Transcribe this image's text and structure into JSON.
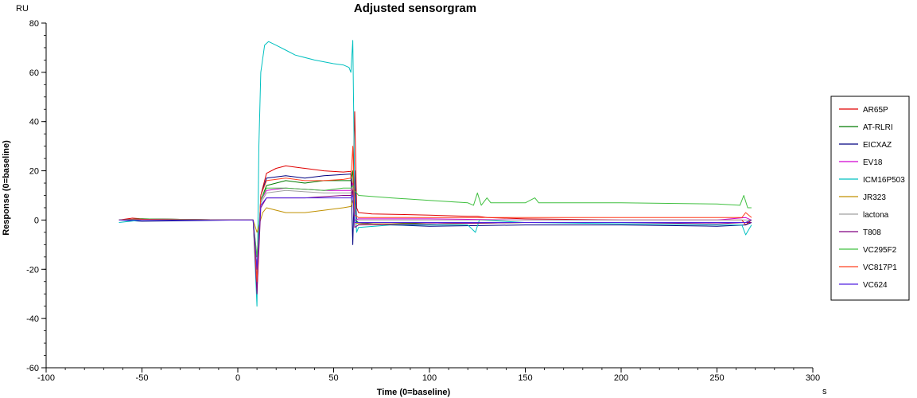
{
  "chart_data": {
    "type": "line",
    "title": "Adjusted sensorgram",
    "xlabel": "Time (0=baseline)",
    "xunit": "s",
    "ylabel": "Response (0=baseline)",
    "yunit": "RU",
    "xlim": [
      -100,
      300
    ],
    "ylim": [
      -60,
      80
    ],
    "xticks": [
      -100,
      -50,
      0,
      50,
      100,
      150,
      200,
      250,
      300
    ],
    "yticks": [
      -60,
      -40,
      -20,
      0,
      20,
      40,
      60,
      80
    ],
    "grid": false,
    "legend_position": "right",
    "series": [
      {
        "name": "AR65P",
        "color": "#e00000",
        "points": [
          [
            -62,
            0
          ],
          [
            -55,
            0.8
          ],
          [
            -40,
            0
          ],
          [
            0,
            0
          ],
          [
            8,
            0
          ],
          [
            10,
            -30
          ],
          [
            12,
            10
          ],
          [
            15,
            19
          ],
          [
            20,
            21
          ],
          [
            25,
            22
          ],
          [
            35,
            21
          ],
          [
            45,
            20
          ],
          [
            55,
            19.5
          ],
          [
            59,
            19.8
          ],
          [
            60,
            10
          ],
          [
            61,
            44
          ],
          [
            62,
            5
          ],
          [
            63,
            3
          ],
          [
            70,
            2.5
          ],
          [
            100,
            2
          ],
          [
            120,
            1.5
          ],
          [
            125,
            1.5
          ],
          [
            130,
            1
          ],
          [
            150,
            0.5
          ],
          [
            200,
            0
          ],
          [
            250,
            0
          ],
          [
            263,
            0
          ],
          [
            265,
            -2
          ],
          [
            268,
            0
          ]
        ]
      },
      {
        "name": "AT-RLRI",
        "color": "#007a00",
        "points": [
          [
            -62,
            0
          ],
          [
            -50,
            0.5
          ],
          [
            0,
            0
          ],
          [
            8,
            0
          ],
          [
            10,
            -20
          ],
          [
            12,
            8
          ],
          [
            15,
            14
          ],
          [
            25,
            16
          ],
          [
            35,
            15
          ],
          [
            45,
            16
          ],
          [
            55,
            16
          ],
          [
            59,
            16
          ],
          [
            60,
            20
          ],
          [
            61,
            0
          ],
          [
            63,
            -1
          ],
          [
            80,
            -1
          ],
          [
            100,
            -1.5
          ],
          [
            150,
            -1
          ],
          [
            200,
            -1
          ],
          [
            250,
            -1
          ],
          [
            265,
            -1
          ],
          [
            268,
            0
          ]
        ]
      },
      {
        "name": "EICXAZ",
        "color": "#000080",
        "points": [
          [
            -62,
            0
          ],
          [
            -50,
            -0.5
          ],
          [
            0,
            0
          ],
          [
            8,
            0
          ],
          [
            10,
            -25
          ],
          [
            12,
            10
          ],
          [
            15,
            17
          ],
          [
            25,
            18
          ],
          [
            35,
            17
          ],
          [
            45,
            18
          ],
          [
            55,
            18.5
          ],
          [
            59,
            18.7
          ],
          [
            60,
            -10
          ],
          [
            61,
            20
          ],
          [
            62,
            -1
          ],
          [
            80,
            -2
          ],
          [
            100,
            -2.5
          ],
          [
            150,
            -2
          ],
          [
            200,
            -2
          ],
          [
            250,
            -2.5
          ],
          [
            265,
            -2
          ],
          [
            268,
            -1
          ]
        ]
      },
      {
        "name": "EV18",
        "color": "#d000d0",
        "points": [
          [
            -62,
            0
          ],
          [
            -50,
            0.3
          ],
          [
            0,
            0
          ],
          [
            8,
            0
          ],
          [
            10,
            -20
          ],
          [
            12,
            8
          ],
          [
            15,
            12
          ],
          [
            25,
            13
          ],
          [
            35,
            12.5
          ],
          [
            45,
            12
          ],
          [
            55,
            12
          ],
          [
            59,
            12
          ],
          [
            60,
            15
          ],
          [
            61,
            0
          ],
          [
            63,
            0.5
          ],
          [
            100,
            0.5
          ],
          [
            150,
            0
          ],
          [
            200,
            0
          ],
          [
            250,
            0
          ],
          [
            265,
            1
          ],
          [
            268,
            0
          ]
        ]
      },
      {
        "name": "ICM16P503",
        "color": "#00c0c0",
        "points": [
          [
            -62,
            -1
          ],
          [
            -50,
            0
          ],
          [
            0,
            0
          ],
          [
            8,
            0
          ],
          [
            10,
            -35
          ],
          [
            11,
            30
          ],
          [
            12,
            60
          ],
          [
            14,
            71
          ],
          [
            16,
            72.5
          ],
          [
            20,
            71
          ],
          [
            25,
            69
          ],
          [
            30,
            67
          ],
          [
            40,
            65
          ],
          [
            50,
            63.5
          ],
          [
            55,
            63
          ],
          [
            58,
            62
          ],
          [
            59,
            60
          ],
          [
            60,
            73
          ],
          [
            61,
            10
          ],
          [
            62,
            -5
          ],
          [
            63,
            -3
          ],
          [
            80,
            -2
          ],
          [
            100,
            -2
          ],
          [
            120,
            -2
          ],
          [
            124,
            -5
          ],
          [
            126,
            0
          ],
          [
            150,
            -1
          ],
          [
            200,
            -1.5
          ],
          [
            250,
            -2
          ],
          [
            263,
            -2
          ],
          [
            265,
            -6
          ],
          [
            268,
            -2
          ]
        ]
      },
      {
        "name": "JR323",
        "color": "#c09000",
        "points": [
          [
            -62,
            0
          ],
          [
            -50,
            0.5
          ],
          [
            0,
            0
          ],
          [
            8,
            0
          ],
          [
            10,
            -5
          ],
          [
            13,
            3
          ],
          [
            15,
            5
          ],
          [
            20,
            4
          ],
          [
            25,
            3
          ],
          [
            35,
            3
          ],
          [
            45,
            4
          ],
          [
            55,
            5
          ],
          [
            59,
            5.5
          ],
          [
            60,
            8
          ],
          [
            61,
            -1
          ],
          [
            63,
            -1.5
          ],
          [
            100,
            -1.5
          ],
          [
            150,
            -1
          ],
          [
            200,
            -1
          ],
          [
            250,
            -1
          ],
          [
            265,
            -1
          ],
          [
            268,
            0
          ]
        ]
      },
      {
        "name": "lactona",
        "color": "#a0a0a0",
        "points": [
          [
            -62,
            0
          ],
          [
            -50,
            0
          ],
          [
            0,
            0
          ],
          [
            8,
            0
          ],
          [
            10,
            -15
          ],
          [
            12,
            7
          ],
          [
            15,
            11
          ],
          [
            25,
            12
          ],
          [
            35,
            11.5
          ],
          [
            45,
            11
          ],
          [
            55,
            11
          ],
          [
            59,
            11
          ],
          [
            60,
            14
          ],
          [
            61,
            0
          ],
          [
            63,
            0
          ],
          [
            100,
            0
          ],
          [
            150,
            0
          ],
          [
            200,
            0
          ],
          [
            250,
            0
          ],
          [
            265,
            0
          ],
          [
            268,
            0
          ]
        ]
      },
      {
        "name": "T808",
        "color": "#800080",
        "points": [
          [
            -62,
            0
          ],
          [
            -50,
            0.5
          ],
          [
            0,
            0
          ],
          [
            8,
            0
          ],
          [
            10,
            -30
          ],
          [
            12,
            5
          ],
          [
            15,
            9
          ],
          [
            25,
            9
          ],
          [
            35,
            9
          ],
          [
            45,
            9.5
          ],
          [
            55,
            10
          ],
          [
            59,
            10
          ],
          [
            60,
            12
          ],
          [
            61,
            -3
          ],
          [
            63,
            -2
          ],
          [
            100,
            -1.5
          ],
          [
            150,
            -1
          ],
          [
            200,
            -1
          ],
          [
            250,
            -1.5
          ],
          [
            265,
            -1
          ],
          [
            268,
            -1
          ]
        ]
      },
      {
        "name": "VC295F2",
        "color": "#40c040",
        "points": [
          [
            -62,
            0
          ],
          [
            -50,
            0.5
          ],
          [
            0,
            0
          ],
          [
            8,
            0
          ],
          [
            10,
            -15
          ],
          [
            12,
            8
          ],
          [
            15,
            13
          ],
          [
            25,
            13
          ],
          [
            35,
            12.5
          ],
          [
            45,
            12
          ],
          [
            55,
            13
          ],
          [
            59,
            13
          ],
          [
            60,
            14
          ],
          [
            61,
            12
          ],
          [
            63,
            10
          ],
          [
            80,
            9
          ],
          [
            100,
            8
          ],
          [
            120,
            7
          ],
          [
            123,
            6
          ],
          [
            125,
            11
          ],
          [
            127,
            6
          ],
          [
            130,
            9
          ],
          [
            132,
            7
          ],
          [
            150,
            7
          ],
          [
            155,
            9
          ],
          [
            157,
            7
          ],
          [
            200,
            7
          ],
          [
            250,
            6.5
          ],
          [
            262,
            6
          ],
          [
            264,
            10
          ],
          [
            266,
            5
          ],
          [
            268,
            5
          ]
        ]
      },
      {
        "name": "VC817P1",
        "color": "#ff4020",
        "points": [
          [
            -62,
            0
          ],
          [
            -50,
            0.3
          ],
          [
            0,
            0
          ],
          [
            8,
            0
          ],
          [
            10,
            -25
          ],
          [
            12,
            10
          ],
          [
            15,
            16
          ],
          [
            25,
            17
          ],
          [
            35,
            16
          ],
          [
            45,
            16
          ],
          [
            55,
            16.5
          ],
          [
            59,
            17
          ],
          [
            60,
            30
          ],
          [
            61,
            2
          ],
          [
            63,
            1
          ],
          [
            100,
            1
          ],
          [
            120,
            1
          ],
          [
            125,
            1
          ],
          [
            130,
            1
          ],
          [
            150,
            1
          ],
          [
            200,
            1
          ],
          [
            250,
            1
          ],
          [
            263,
            1
          ],
          [
            265,
            3
          ],
          [
            268,
            1
          ]
        ]
      },
      {
        "name": "VC624",
        "color": "#5020e0",
        "points": [
          [
            -62,
            0
          ],
          [
            -50,
            0
          ],
          [
            0,
            0
          ],
          [
            8,
            0
          ],
          [
            10,
            -20
          ],
          [
            12,
            6
          ],
          [
            15,
            9
          ],
          [
            25,
            9
          ],
          [
            35,
            9
          ],
          [
            45,
            9
          ],
          [
            55,
            9
          ],
          [
            59,
            9
          ],
          [
            60,
            10
          ],
          [
            61,
            -1
          ],
          [
            63,
            -1
          ],
          [
            100,
            -1
          ],
          [
            150,
            -1
          ],
          [
            200,
            -1
          ],
          [
            250,
            -1
          ],
          [
            265,
            -1
          ],
          [
            268,
            0
          ]
        ]
      }
    ]
  }
}
